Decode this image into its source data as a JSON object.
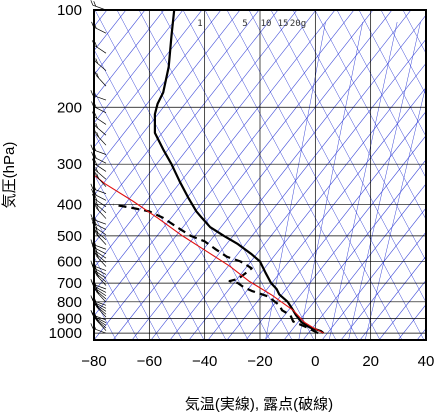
{
  "chart_data": {
    "type": "line",
    "title": "",
    "xlabel": "気温(実線), 露点(破線)",
    "ylabel": "気圧(hPa)",
    "xlim": [
      -80,
      40
    ],
    "ylim": [
      1050,
      100
    ],
    "y_scale": "log",
    "grid": true,
    "x_ticks": [
      -80,
      -60,
      -40,
      -20,
      0,
      20,
      40
    ],
    "x_tick_labels": [
      "−80",
      "−60",
      "−40",
      "−20",
      "0",
      "20",
      "40"
    ],
    "y_ticks": [
      100,
      200,
      300,
      400,
      500,
      600,
      700,
      800,
      900,
      1000
    ],
    "y_tick_labels": [
      "100",
      "200",
      "300",
      "400",
      "500",
      "600",
      "700",
      "800",
      "900",
      "1000"
    ],
    "mixing_ratio_labels": [
      "1",
      "5",
      "10",
      "15",
      "20g"
    ],
    "series": [
      {
        "role": "temperature",
        "style": "solid",
        "color": "#000000",
        "points": [
          [
            3,
            1000
          ],
          [
            2,
            985
          ],
          [
            -2,
            960
          ],
          [
            -5,
            925
          ],
          [
            -7,
            880
          ],
          [
            -8,
            850
          ],
          [
            -10,
            800
          ],
          [
            -13,
            760
          ],
          [
            -14,
            730
          ],
          [
            -16,
            700
          ],
          [
            -18,
            650
          ],
          [
            -20,
            600
          ],
          [
            -23,
            570
          ],
          [
            -28,
            530
          ],
          [
            -33,
            500
          ],
          [
            -38,
            470
          ],
          [
            -41,
            440
          ],
          [
            -43,
            420
          ],
          [
            -46,
            380
          ],
          [
            -49,
            340
          ],
          [
            -52,
            300
          ],
          [
            -55,
            270
          ],
          [
            -58,
            240
          ],
          [
            -58,
            210
          ],
          [
            -57,
            195
          ],
          [
            -55,
            180
          ],
          [
            -53,
            150
          ],
          [
            -52,
            120
          ],
          [
            -51,
            100
          ]
        ]
      },
      {
        "role": "dewpoint",
        "style": "dashed",
        "color": "#000000",
        "points": [
          [
            1,
            1000
          ],
          [
            -3,
            960
          ],
          [
            -8,
            920
          ],
          [
            -9,
            880
          ],
          [
            -12,
            850
          ],
          [
            -13,
            820
          ],
          [
            -17,
            770
          ],
          [
            -23,
            740
          ],
          [
            -26,
            720
          ],
          [
            -28,
            700
          ],
          [
            -31,
            690
          ],
          [
            -28,
            680
          ],
          [
            -25,
            650
          ],
          [
            -23,
            630
          ],
          [
            -27,
            600
          ],
          [
            -32,
            580
          ],
          [
            -36,
            550
          ],
          [
            -40,
            520
          ],
          [
            -45,
            500
          ],
          [
            -50,
            470
          ],
          [
            -55,
            440
          ],
          [
            -60,
            420
          ],
          [
            -66,
            410
          ],
          [
            -73,
            400
          ]
        ]
      },
      {
        "role": "parcel",
        "style": "solid",
        "color": "#e21010",
        "points": [
          [
            3,
            1000
          ],
          [
            -1,
            960
          ],
          [
            -4,
            925
          ],
          [
            -8,
            850
          ],
          [
            -16,
            760
          ],
          [
            -24,
            690
          ],
          [
            -31,
            620
          ],
          [
            -39,
            560
          ],
          [
            -48,
            500
          ],
          [
            -57,
            440
          ],
          [
            -66,
            390
          ],
          [
            -76,
            345
          ],
          [
            -85,
            300
          ]
        ]
      }
    ]
  }
}
